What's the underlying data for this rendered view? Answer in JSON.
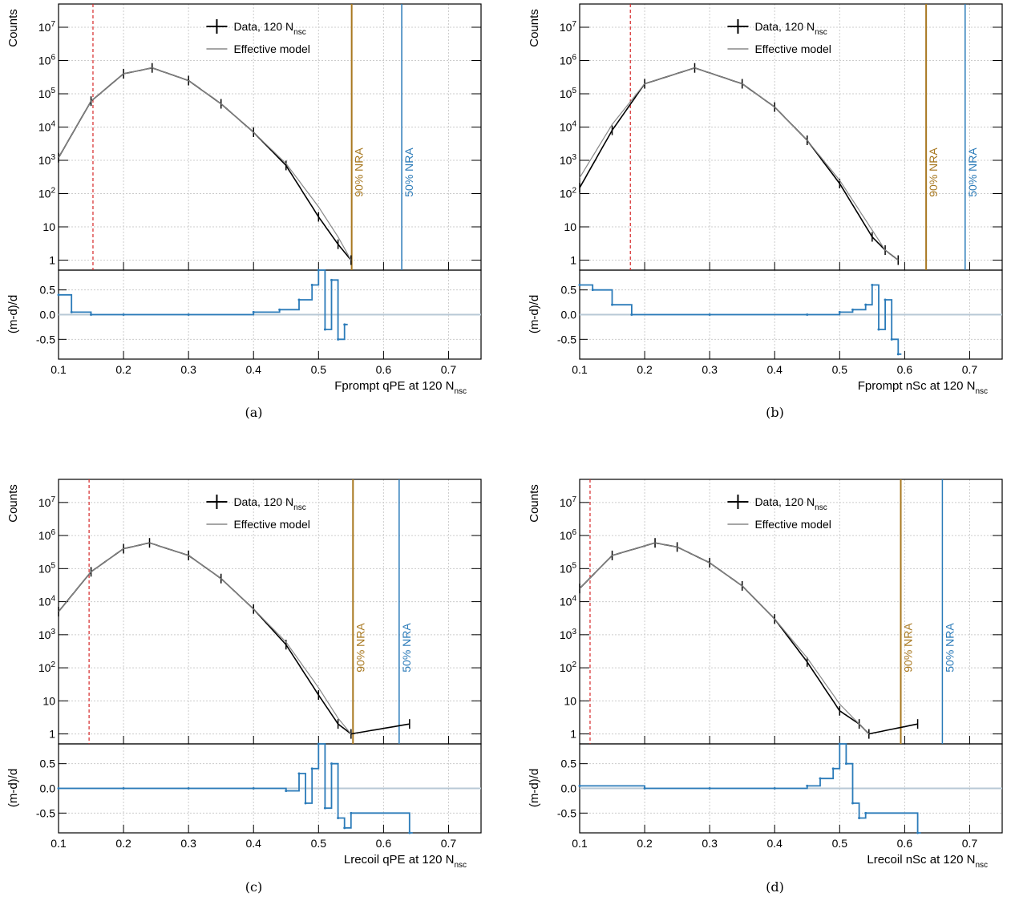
{
  "labels": {
    "counts": "Counts",
    "ratio": "(m-d)/d",
    "legend_data_prefix": "Data, 120 N",
    "legend_data_sub": "nsc",
    "legend_model": "Effective model",
    "nra90": "90% NRA",
    "nra50": "50% NRA",
    "axis_sub": "nsc"
  },
  "colors": {
    "data": "#000000",
    "model": "#888888",
    "residual": "#2b7bb9",
    "residual_faded": "#cccccc",
    "nra90": "#a87820",
    "nra50": "#2b7bb9",
    "cut": "#d62728",
    "grid": "#cccccc"
  },
  "chart_data": [
    {
      "type": "line",
      "panel": "a",
      "caption": "(a)",
      "xlabel": "Fprompt qPE at 120 N",
      "xlim": [
        0.1,
        0.75
      ],
      "xticks": [
        "0.1",
        "0.2",
        "0.3",
        "0.4",
        "0.5",
        "0.6",
        "0.7"
      ],
      "ylabel": "Counts",
      "yscale": "log",
      "ylim": [
        0.5,
        50000000
      ],
      "yticks": [
        "1",
        "10",
        "10^2",
        "10^3",
        "10^4",
        "10^5",
        "10^6",
        "10^7"
      ],
      "grid": true,
      "legend": "top-center",
      "series": [
        {
          "name": "Data, 120 N_nsc",
          "x": [
            0.1,
            0.15,
            0.2,
            0.244,
            0.3,
            0.35,
            0.4,
            0.45,
            0.5,
            0.53,
            0.55
          ],
          "y": [
            1200,
            60000,
            400000,
            600000,
            250000,
            50000,
            7000,
            700,
            20,
            3,
            1
          ]
        },
        {
          "name": "Effective model",
          "x": [
            0.1,
            0.15,
            0.2,
            0.244,
            0.3,
            0.35,
            0.4,
            0.45,
            0.5,
            0.53,
            0.55
          ],
          "y": [
            1200,
            60000,
            400000,
            600000,
            250000,
            50000,
            7000,
            800,
            40,
            5,
            1
          ]
        }
      ],
      "vlines": {
        "cut": 0.153,
        "nra90": 0.551,
        "nra50": 0.628
      },
      "ratio": {
        "ylabel": "(m-d)/d",
        "ylim": [
          -0.9,
          0.9
        ],
        "yticks": [
          "0.5",
          "0.0",
          "-0.5"
        ],
        "x": [
          0.1,
          0.12,
          0.15,
          0.2,
          0.3,
          0.4,
          0.44,
          0.47,
          0.49,
          0.5,
          0.51,
          0.52,
          0.53,
          0.54
        ],
        "y": [
          0.4,
          0.05,
          0.0,
          0.0,
          0.0,
          0.05,
          0.1,
          0.3,
          0.6,
          0.9,
          -0.3,
          0.7,
          -0.5,
          -0.2
        ]
      }
    },
    {
      "type": "line",
      "panel": "b",
      "caption": "(b)",
      "xlabel": "Fprompt nSc at 120 N",
      "xlim": [
        0.1,
        0.75
      ],
      "xticks": [
        "0.1",
        "0.2",
        "0.3",
        "0.4",
        "0.5",
        "0.6",
        "0.7"
      ],
      "ylabel": "Counts",
      "yscale": "log",
      "ylim": [
        0.5,
        50000000
      ],
      "yticks": [
        "1",
        "10",
        "10^2",
        "10^3",
        "10^4",
        "10^5",
        "10^6",
        "10^7"
      ],
      "grid": true,
      "legend": "top-center",
      "series": [
        {
          "name": "Data, 120 N_nsc",
          "x": [
            0.1,
            0.15,
            0.2,
            0.277,
            0.35,
            0.4,
            0.45,
            0.5,
            0.55,
            0.57,
            0.59
          ],
          "y": [
            150,
            8000,
            200000,
            600000,
            200000,
            40000,
            4000,
            200,
            5,
            2,
            1
          ]
        },
        {
          "name": "Effective model",
          "x": [
            0.1,
            0.15,
            0.2,
            0.277,
            0.35,
            0.4,
            0.45,
            0.5,
            0.55,
            0.57,
            0.59
          ],
          "y": [
            300,
            12000,
            200000,
            600000,
            200000,
            40000,
            4000,
            250,
            8,
            2,
            1
          ]
        }
      ],
      "vlines": {
        "cut": 0.178,
        "nra90": 0.633,
        "nra50": 0.693
      },
      "ratio": {
        "ylabel": "(m-d)/d",
        "ylim": [
          -0.9,
          0.9
        ],
        "yticks": [
          "0.5",
          "0.0",
          "-0.5"
        ],
        "x": [
          0.1,
          0.12,
          0.15,
          0.18,
          0.3,
          0.45,
          0.5,
          0.52,
          0.54,
          0.55,
          0.56,
          0.57,
          0.58,
          0.59
        ],
        "y": [
          0.6,
          0.5,
          0.2,
          0.0,
          0.0,
          0.0,
          0.05,
          0.1,
          0.2,
          0.6,
          -0.3,
          0.3,
          -0.5,
          -0.8
        ]
      }
    },
    {
      "type": "line",
      "panel": "c",
      "caption": "(c)",
      "xlabel": "Lrecoil qPE at 120 N",
      "xlim": [
        0.1,
        0.75
      ],
      "xticks": [
        "0.1",
        "0.2",
        "0.3",
        "0.4",
        "0.5",
        "0.6",
        "0.7"
      ],
      "ylabel": "Counts",
      "yscale": "log",
      "ylim": [
        0.5,
        50000000
      ],
      "yticks": [
        "1",
        "10",
        "10^2",
        "10^3",
        "10^4",
        "10^5",
        "10^6",
        "10^7"
      ],
      "grid": true,
      "legend": "top-center",
      "series": [
        {
          "name": "Data, 120 N_nsc",
          "x": [
            0.1,
            0.15,
            0.2,
            0.24,
            0.3,
            0.35,
            0.4,
            0.45,
            0.5,
            0.53,
            0.55,
            0.64
          ],
          "y": [
            5000,
            80000,
            400000,
            600000,
            250000,
            50000,
            6000,
            500,
            15,
            2,
            1,
            2
          ]
        },
        {
          "name": "Effective model",
          "x": [
            0.1,
            0.15,
            0.2,
            0.24,
            0.3,
            0.35,
            0.4,
            0.45,
            0.5,
            0.53,
            0.55
          ],
          "y": [
            5000,
            80000,
            400000,
            600000,
            250000,
            50000,
            6000,
            600,
            25,
            3,
            1
          ]
        }
      ],
      "vlines": {
        "cut": 0.147,
        "nra90": 0.553,
        "nra50": 0.624
      },
      "ratio": {
        "ylabel": "(m-d)/d",
        "ylim": [
          -0.9,
          0.9
        ],
        "yticks": [
          "0.5",
          "0.0",
          "-0.5"
        ],
        "x": [
          0.1,
          0.2,
          0.3,
          0.4,
          0.45,
          0.47,
          0.48,
          0.49,
          0.5,
          0.51,
          0.52,
          0.53,
          0.54,
          0.55,
          0.64
        ],
        "y": [
          0.0,
          0.0,
          0.0,
          0.0,
          -0.05,
          0.3,
          -0.3,
          0.4,
          0.9,
          -0.4,
          0.5,
          -0.6,
          -0.8,
          -0.5,
          -0.9
        ]
      }
    },
    {
      "type": "line",
      "panel": "d",
      "caption": "(d)",
      "xlabel": "Lrecoil nSc at 120 N",
      "xlim": [
        0.1,
        0.75
      ],
      "xticks": [
        "0.1",
        "0.2",
        "0.3",
        "0.4",
        "0.5",
        "0.6",
        "0.7"
      ],
      "ylabel": "Counts",
      "yscale": "log",
      "ylim": [
        0.5,
        50000000
      ],
      "yticks": [
        "1",
        "10",
        "10^2",
        "10^3",
        "10^4",
        "10^5",
        "10^6",
        "10^7"
      ],
      "grid": true,
      "legend": "top-center",
      "series": [
        {
          "name": "Data, 120 N_nsc",
          "x": [
            0.1,
            0.15,
            0.216,
            0.25,
            0.3,
            0.35,
            0.4,
            0.45,
            0.5,
            0.53,
            0.545,
            0.62
          ],
          "y": [
            25000,
            250000,
            600000,
            450000,
            150000,
            30000,
            3000,
            150,
            5,
            2,
            1,
            2
          ]
        },
        {
          "name": "Effective model",
          "x": [
            0.1,
            0.15,
            0.216,
            0.25,
            0.3,
            0.35,
            0.4,
            0.45,
            0.5,
            0.53,
            0.545
          ],
          "y": [
            25000,
            250000,
            600000,
            450000,
            150000,
            30000,
            3000,
            200,
            8,
            2,
            1
          ]
        }
      ],
      "vlines": {
        "cut": 0.116,
        "nra90": 0.594,
        "nra50": 0.658
      },
      "ratio": {
        "ylabel": "(m-d)/d",
        "ylim": [
          -0.9,
          0.9
        ],
        "yticks": [
          "0.5",
          "0.0",
          "-0.5"
        ],
        "x": [
          0.1,
          0.2,
          0.3,
          0.4,
          0.45,
          0.47,
          0.49,
          0.5,
          0.51,
          0.52,
          0.53,
          0.54,
          0.62
        ],
        "y": [
          0.05,
          0.0,
          0.0,
          0.0,
          0.05,
          0.2,
          0.4,
          0.9,
          0.5,
          -0.3,
          -0.6,
          -0.5,
          -0.9
        ]
      }
    }
  ]
}
